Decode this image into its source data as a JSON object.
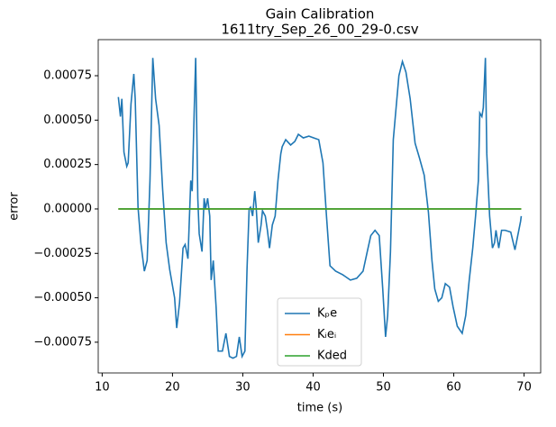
{
  "chart_data": {
    "type": "line",
    "title": "Gain Calibration",
    "subtitle": "1611try_Sep_26_00_29-0.csv",
    "xlabel": "time (s)",
    "ylabel": "error",
    "xlim": [
      9.44,
      72.36
    ],
    "ylim": [
      -0.000923,
      0.000953
    ],
    "xticks": [
      10,
      20,
      30,
      40,
      50,
      60,
      70
    ],
    "yticks": [
      {
        "value": -0.00075,
        "label": "−0.00075"
      },
      {
        "value": -0.0005,
        "label": "−0.00050"
      },
      {
        "value": -0.00025,
        "label": "−0.00025"
      },
      {
        "value": 0,
        "label": "0.00000"
      },
      {
        "value": 0.00025,
        "label": "0.00025"
      },
      {
        "value": 0.0005,
        "label": "0.00050"
      },
      {
        "value": 0.00075,
        "label": "0.00075"
      }
    ],
    "grid": false,
    "legend": "lower center",
    "series": [
      {
        "name": "Kₚe",
        "color": "#1f77b4",
        "x": [
          12.3,
          12.6,
          12.8,
          13.1,
          13.5,
          13.7,
          14.1,
          14.5,
          14.7,
          15.1,
          15.5,
          16.0,
          16.4,
          16.8,
          17.2,
          17.6,
          18.1,
          18.6,
          19.1,
          19.6,
          20.3,
          20.6,
          21.0,
          21.5,
          21.8,
          22.2,
          22.6,
          22.8,
          23.1,
          23.3,
          23.6,
          23.8,
          24.2,
          24.5,
          24.7,
          25.0,
          25.3,
          25.5,
          25.8,
          26.2,
          26.5,
          27.1,
          27.6,
          28.1,
          28.6,
          29.1,
          29.5,
          29.9,
          30.3,
          30.6,
          30.9,
          31.1,
          31.4,
          31.7,
          31.9,
          32.2,
          32.6,
          32.8,
          33.2,
          33.5,
          33.8,
          34.2,
          34.6,
          35.0,
          35.4,
          35.6,
          36.1,
          36.8,
          37.4,
          37.9,
          38.6,
          39.4,
          40.1,
          40.8,
          41.4,
          41.9,
          42.4,
          43.2,
          44.2,
          45.3,
          46.2,
          47.1,
          47.7,
          48.2,
          48.8,
          49.4,
          49.9,
          50.3,
          50.6,
          51.0,
          51.4,
          51.8,
          52.2,
          52.7,
          53.2,
          53.8,
          54.5,
          55.1,
          55.8,
          56.4,
          56.9,
          57.3,
          57.8,
          58.3,
          58.8,
          59.4,
          59.9,
          60.5,
          61.2,
          61.7,
          62.2,
          62.7,
          63.1,
          63.5,
          63.7,
          64.0,
          64.2,
          64.5,
          64.7,
          65.1,
          65.5,
          65.8,
          66.0,
          66.4,
          66.8,
          67.3,
          68.1,
          68.7,
          69.1,
          69.5,
          69.6
        ],
        "values": [
          0.00063,
          0.00052,
          0.00062,
          0.00032,
          0.00024,
          0.00026,
          0.00059,
          0.00076,
          0.00062,
          1e-05,
          -0.00019,
          -0.00035,
          -0.00029,
          0.00016,
          0.00085,
          0.00062,
          0.00047,
          0.00011,
          -0.00019,
          -0.00034,
          -0.0005,
          -0.00067,
          -0.00053,
          -0.00022,
          -0.0002,
          -0.00028,
          0.00016,
          0.0001,
          0.00057,
          0.00085,
          6e-05,
          -0.00014,
          -0.00024,
          6e-05,
          0,
          6e-05,
          -4e-05,
          -0.0004,
          -0.00029,
          -0.00055,
          -0.0008,
          -0.0008,
          -0.0007,
          -0.00083,
          -0.00084,
          -0.00083,
          -0.00072,
          -0.00083,
          -0.0008,
          -0.00034,
          0,
          1e-05,
          -4e-05,
          0.0001,
          1e-05,
          -0.00019,
          -9e-05,
          -1e-05,
          -4e-05,
          -0.00012,
          -0.00022,
          -9e-05,
          -4e-05,
          0.00016,
          0.00031,
          0.00035,
          0.00039,
          0.00036,
          0.00038,
          0.00042,
          0.0004,
          0.00041,
          0.0004,
          0.00039,
          0.00026,
          -4e-05,
          -0.00032,
          -0.00035,
          -0.00037,
          -0.0004,
          -0.00039,
          -0.00035,
          -0.00024,
          -0.00015,
          -0.00012,
          -0.00015,
          -0.00045,
          -0.00072,
          -0.0006,
          -0.00024,
          0.00039,
          0.00057,
          0.00075,
          0.00083,
          0.00077,
          0.00062,
          0.00037,
          0.00029,
          0.00019,
          -2e-05,
          -0.00029,
          -0.00045,
          -0.00052,
          -0.0005,
          -0.00042,
          -0.00044,
          -0.00055,
          -0.00066,
          -0.0007,
          -0.0006,
          -0.0004,
          -0.00022,
          -4e-05,
          0.00016,
          0.00054,
          0.00052,
          0.00057,
          0.00085,
          0.00031,
          -4e-05,
          -0.00022,
          -0.00019,
          -0.00012,
          -0.00022,
          -0.00012,
          -0.00012,
          -0.00013,
          -0.00023,
          -0.00015,
          -7e-05,
          -4e-05
        ]
      },
      {
        "name": "Kᵢeᵢ",
        "color": "#ff7f0e",
        "x": [
          12.3,
          69.6
        ],
        "values": [
          0,
          0
        ]
      },
      {
        "name": "Kded",
        "color": "#2ca02c",
        "x": [
          12.3,
          69.6
        ],
        "values": [
          0,
          0
        ]
      }
    ]
  }
}
